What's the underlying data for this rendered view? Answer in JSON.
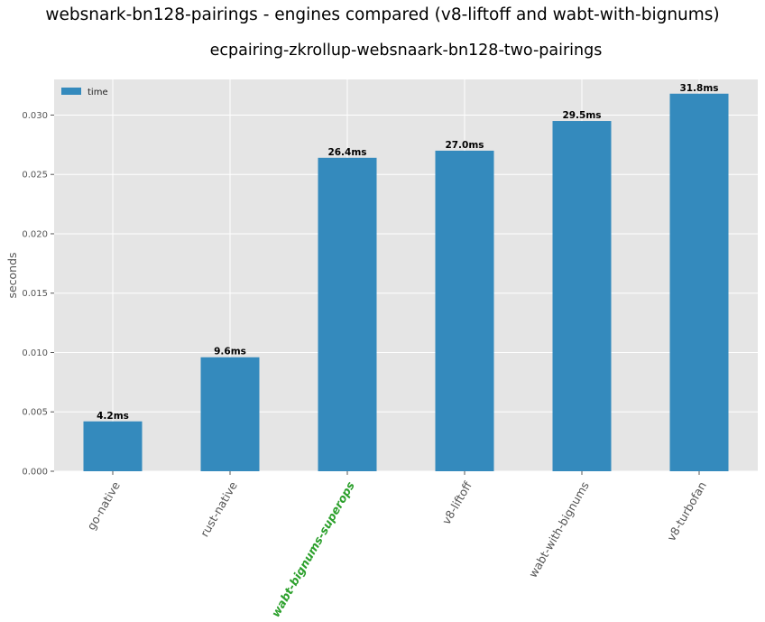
{
  "chart_data": {
    "type": "bar",
    "suptitle": "websnark-bn128-pairings - engines compared (v8-liftoff and wabt-with-bignums)",
    "title": "ecpairing-zkrollup-websnaark-bn128-two-pairings",
    "xlabel": "",
    "ylabel": "seconds",
    "categories": [
      "go-native",
      "rust-native",
      "wabt-bignums-superops",
      "v8-liftoff",
      "wabt-with-bignums",
      "v8-turbofan"
    ],
    "highlight_category": "wabt-bignums-superops",
    "series": [
      {
        "name": "time",
        "values": [
          0.0042,
          0.0096,
          0.0264,
          0.027,
          0.0295,
          0.0318
        ]
      }
    ],
    "data_labels": [
      "4.2ms",
      "9.6ms",
      "26.4ms",
      "27.0ms",
      "29.5ms",
      "31.8ms"
    ],
    "ylim": [
      0,
      0.033
    ],
    "yticks": [
      0.0,
      0.005,
      0.01,
      0.015,
      0.02,
      0.025,
      0.03
    ],
    "ytick_labels": [
      "0.000",
      "0.005",
      "0.010",
      "0.015",
      "0.020",
      "0.025",
      "0.030"
    ],
    "grid": true,
    "legend": {
      "position": "top-left",
      "entries": [
        "time"
      ]
    },
    "colors": {
      "bar": "#348ABD",
      "background": "#E5E5E5",
      "grid": "#FFFFFF",
      "highlight_label": "#2CA02C",
      "axis_text": "#555555"
    }
  }
}
